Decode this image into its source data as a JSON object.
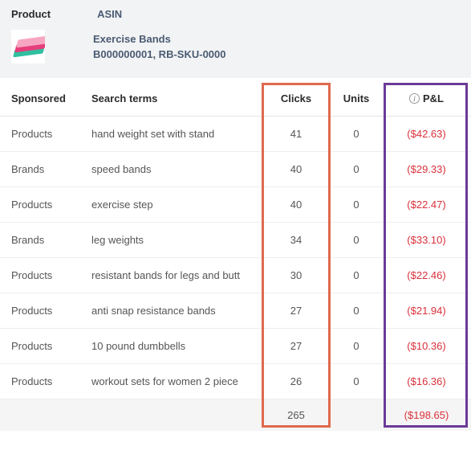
{
  "header": {
    "product_label": "Product",
    "asin_label": "ASIN",
    "product_name": "Exercise Bands",
    "product_codes": "B000000001, RB-SKU-0000"
  },
  "columns": {
    "sponsored": "Sponsored",
    "search_terms": "Search terms",
    "clicks": "Clicks",
    "units": "Units",
    "pnl": "P&L"
  },
  "rows": [
    {
      "sponsored": "Products",
      "term": "hand weight set with stand",
      "clicks": "41",
      "units": "0",
      "pnl": "($42.63)"
    },
    {
      "sponsored": "Brands",
      "term": "speed bands",
      "clicks": "40",
      "units": "0",
      "pnl": "($29.33)"
    },
    {
      "sponsored": "Products",
      "term": "exercise step",
      "clicks": "40",
      "units": "0",
      "pnl": "($22.47)"
    },
    {
      "sponsored": "Brands",
      "term": "leg weights",
      "clicks": "34",
      "units": "0",
      "pnl": "($33.10)"
    },
    {
      "sponsored": "Products",
      "term": "resistant bands for legs and butt",
      "clicks": "30",
      "units": "0",
      "pnl": "($22.46)"
    },
    {
      "sponsored": "Products",
      "term": "anti snap resistance bands",
      "clicks": "27",
      "units": "0",
      "pnl": "($21.94)"
    },
    {
      "sponsored": "Products",
      "term": "10 pound dumbbells",
      "clicks": "27",
      "units": "0",
      "pnl": "($10.36)"
    },
    {
      "sponsored": "Products",
      "term": "workout sets for women 2 piece",
      "clicks": "26",
      "units": "0",
      "pnl": "($16.36)"
    }
  ],
  "totals": {
    "clicks": "265",
    "pnl": "($198.65)"
  },
  "highlights": {
    "clicks_box_color": "#e0694d",
    "pnl_box_color": "#6b3a99"
  }
}
